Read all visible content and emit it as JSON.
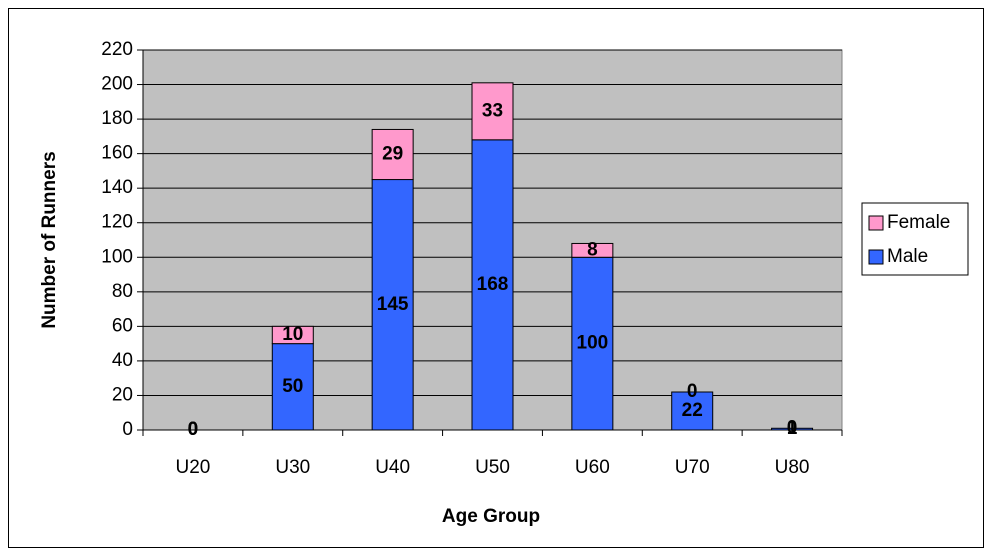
{
  "chart_data": {
    "type": "stacked_bar",
    "x_label": "Age Group",
    "y_label": "Number of Runners",
    "categories": [
      "U20",
      "U30",
      "U40",
      "U50",
      "U60",
      "U70",
      "U80"
    ],
    "series": [
      {
        "name": "Male",
        "color": "#3366ff",
        "values": [
          0,
          50,
          145,
          168,
          100,
          22,
          1
        ]
      },
      {
        "name": "Female",
        "color": "#ff99cc",
        "values": [
          0,
          10,
          29,
          33,
          8,
          0,
          0
        ]
      }
    ],
    "ylim": [
      0,
      220
    ],
    "yticks": [
      0,
      20,
      40,
      60,
      80,
      100,
      120,
      140,
      160,
      180,
      200,
      220
    ],
    "grid": true,
    "legend": "right",
    "plot_background": "#c0c0c0"
  }
}
